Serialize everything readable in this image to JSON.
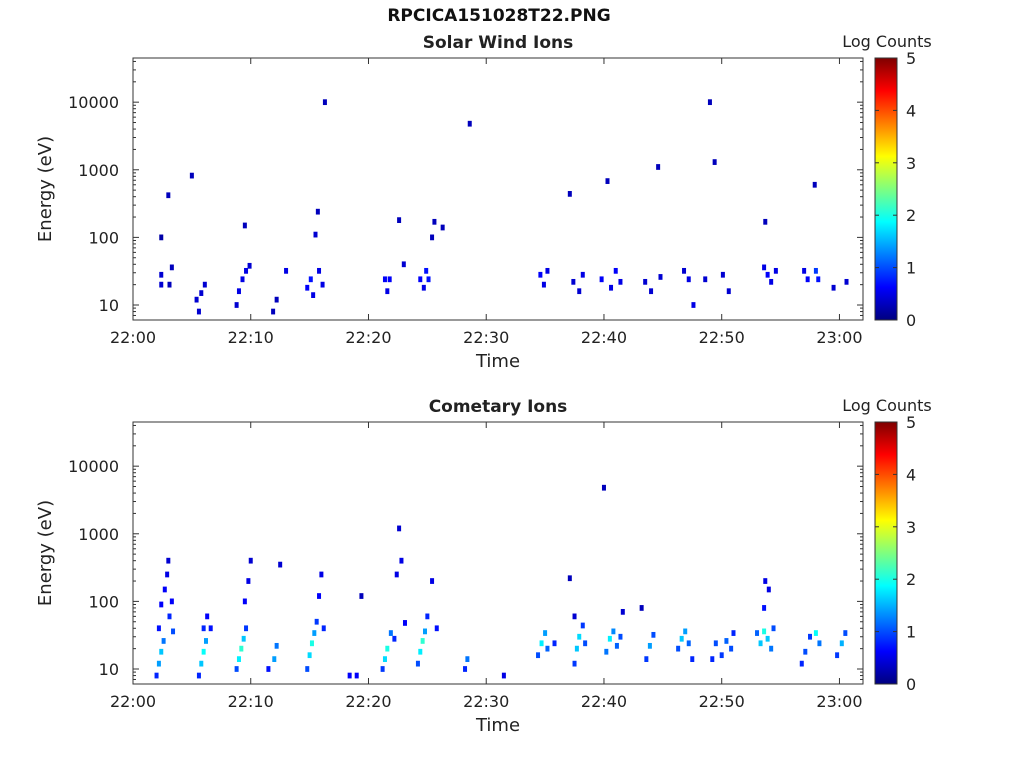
{
  "figure": {
    "title": "RPCICA151028T22.PNG"
  },
  "colors": {
    "colormap": [
      "#00007f",
      "#0000ff",
      "#007fff",
      "#00ffff",
      "#7fff7f",
      "#ffff00",
      "#ff7f00",
      "#ff0000",
      "#7f0000"
    ],
    "axis": "#333333"
  },
  "chart_data": [
    {
      "type": "heatmap",
      "title": "Solar Wind Ions",
      "xlabel": "Time",
      "ylabel": "Energy (eV)",
      "x_ticks": [
        "22:00",
        "22:10",
        "22:20",
        "22:30",
        "22:40",
        "22:50",
        "23:00"
      ],
      "x_range": [
        "22:00",
        "23:02"
      ],
      "y_scale": "log",
      "y_ticks": [
        10,
        100,
        1000,
        10000
      ],
      "y_range": [
        6,
        45000
      ],
      "colorbar": {
        "label": "Log Counts",
        "ticks": [
          0,
          1,
          2,
          3,
          4,
          5
        ],
        "range": [
          0,
          5
        ]
      },
      "cells": [
        [
          2.4,
          100,
          0.2
        ],
        [
          2.4,
          28,
          0.4
        ],
        [
          2.4,
          20,
          0.4
        ],
        [
          3.0,
          420,
          0.3
        ],
        [
          3.1,
          20,
          0.3
        ],
        [
          3.3,
          36,
          0.3
        ],
        [
          5.0,
          820,
          0.3
        ],
        [
          5.4,
          12,
          0.4
        ],
        [
          5.6,
          8,
          0.4
        ],
        [
          5.8,
          15,
          0.4
        ],
        [
          6.1,
          20,
          0.4
        ],
        [
          8.8,
          10,
          0.4
        ],
        [
          9.0,
          16,
          0.5
        ],
        [
          9.3,
          24,
          0.5
        ],
        [
          9.6,
          32,
          0.5
        ],
        [
          9.9,
          38,
          0.4
        ],
        [
          9.5,
          150,
          0.3
        ],
        [
          11.9,
          8,
          0.3
        ],
        [
          12.2,
          12,
          0.3
        ],
        [
          13.0,
          32,
          0.5
        ],
        [
          14.8,
          18,
          0.6
        ],
        [
          15.1,
          24,
          0.7
        ],
        [
          15.3,
          14,
          0.5
        ],
        [
          15.5,
          110,
          0.4
        ],
        [
          15.7,
          240,
          0.3
        ],
        [
          15.8,
          32,
          0.5
        ],
        [
          16.1,
          20,
          0.5
        ],
        [
          16.3,
          10000,
          0.3
        ],
        [
          21.4,
          24,
          0.6
        ],
        [
          21.6,
          16,
          0.5
        ],
        [
          21.8,
          24,
          0.6
        ],
        [
          22.6,
          180,
          0.3
        ],
        [
          23.0,
          40,
          0.4
        ],
        [
          24.4,
          24,
          0.6
        ],
        [
          24.7,
          18,
          0.5
        ],
        [
          24.9,
          32,
          0.7
        ],
        [
          25.1,
          24,
          0.7
        ],
        [
          25.4,
          100,
          0.3
        ],
        [
          25.6,
          170,
          0.3
        ],
        [
          26.3,
          140,
          0.3
        ],
        [
          28.6,
          4800,
          0.3
        ],
        [
          34.6,
          28,
          0.6
        ],
        [
          34.9,
          20,
          0.5
        ],
        [
          35.2,
          32,
          0.5
        ],
        [
          37.1,
          440,
          0.3
        ],
        [
          37.4,
          22,
          0.4
        ],
        [
          37.9,
          16,
          0.4
        ],
        [
          38.2,
          28,
          0.5
        ],
        [
          39.8,
          24,
          0.6
        ],
        [
          40.3,
          680,
          0.3
        ],
        [
          40.6,
          18,
          0.5
        ],
        [
          41.0,
          32,
          0.6
        ],
        [
          41.4,
          22,
          0.5
        ],
        [
          43.5,
          22,
          0.4
        ],
        [
          44.0,
          16,
          0.4
        ],
        [
          44.6,
          1100,
          0.3
        ],
        [
          44.8,
          26,
          0.4
        ],
        [
          46.8,
          32,
          0.4
        ],
        [
          47.2,
          24,
          0.5
        ],
        [
          47.6,
          10,
          0.5
        ],
        [
          48.6,
          24,
          0.4
        ],
        [
          49.0,
          10000,
          0.3
        ],
        [
          49.4,
          1300,
          0.3
        ],
        [
          50.1,
          28,
          0.4
        ],
        [
          50.6,
          16,
          0.4
        ],
        [
          53.6,
          36,
          0.5
        ],
        [
          53.9,
          28,
          0.6
        ],
        [
          54.2,
          22,
          0.5
        ],
        [
          54.6,
          32,
          0.5
        ],
        [
          53.7,
          170,
          0.3
        ],
        [
          57.0,
          32,
          0.5
        ],
        [
          57.3,
          24,
          0.6
        ],
        [
          57.9,
          600,
          0.3
        ],
        [
          58.0,
          32,
          0.9
        ],
        [
          58.2,
          24,
          0.7
        ],
        [
          59.5,
          18,
          0.4
        ],
        [
          60.6,
          22,
          0.4
        ]
      ]
    },
    {
      "type": "heatmap",
      "title": "Cometary Ions",
      "xlabel": "Time",
      "ylabel": "Energy (eV)",
      "x_ticks": [
        "22:00",
        "22:10",
        "22:20",
        "22:30",
        "22:40",
        "22:50",
        "23:00"
      ],
      "x_range": [
        "22:00",
        "23:02"
      ],
      "y_scale": "log",
      "y_ticks": [
        10,
        100,
        1000,
        10000
      ],
      "y_range": [
        6,
        45000
      ],
      "colorbar": {
        "label": "Log Counts",
        "ticks": [
          0,
          1,
          2,
          3,
          4,
          5
        ],
        "range": [
          0,
          5
        ]
      },
      "cells": [
        [
          2.0,
          8,
          0.8
        ],
        [
          2.2,
          12,
          1.4
        ],
        [
          2.4,
          18,
          1.6
        ],
        [
          2.6,
          26,
          1.2
        ],
        [
          2.2,
          40,
          0.7
        ],
        [
          2.4,
          90,
          0.6
        ],
        [
          2.7,
          150,
          0.6
        ],
        [
          2.9,
          250,
          0.5
        ],
        [
          3.0,
          400,
          0.4
        ],
        [
          3.1,
          60,
          0.8
        ],
        [
          3.3,
          100,
          0.6
        ],
        [
          3.4,
          36,
          1.0
        ],
        [
          5.6,
          8,
          0.8
        ],
        [
          5.8,
          12,
          1.6
        ],
        [
          6.0,
          18,
          1.9
        ],
        [
          6.2,
          26,
          1.4
        ],
        [
          6.0,
          40,
          0.8
        ],
        [
          6.3,
          60,
          0.6
        ],
        [
          6.6,
          40,
          0.7
        ],
        [
          8.8,
          10,
          1.0
        ],
        [
          9.0,
          14,
          1.8
        ],
        [
          9.2,
          20,
          2.1
        ],
        [
          9.4,
          28,
          1.6
        ],
        [
          9.6,
          40,
          0.9
        ],
        [
          9.5,
          100,
          0.6
        ],
        [
          9.8,
          200,
          0.5
        ],
        [
          10.0,
          400,
          0.4
        ],
        [
          11.5,
          10,
          0.7
        ],
        [
          12.0,
          14,
          1.4
        ],
        [
          12.2,
          22,
          1.2
        ],
        [
          12.5,
          350,
          0.4
        ],
        [
          14.8,
          10,
          1.0
        ],
        [
          15.0,
          16,
          1.7
        ],
        [
          15.2,
          24,
          2.0
        ],
        [
          15.4,
          34,
          1.4
        ],
        [
          15.6,
          50,
          0.9
        ],
        [
          15.8,
          120,
          0.6
        ],
        [
          16.0,
          250,
          0.5
        ],
        [
          16.2,
          40,
          0.8
        ],
        [
          18.4,
          8,
          0.6
        ],
        [
          19.0,
          8,
          0.6
        ],
        [
          19.4,
          120,
          0.3
        ],
        [
          21.2,
          10,
          0.9
        ],
        [
          21.4,
          14,
          1.7
        ],
        [
          21.6,
          20,
          2.0
        ],
        [
          21.9,
          34,
          1.2
        ],
        [
          22.2,
          28,
          0.8
        ],
        [
          22.4,
          250,
          0.5
        ],
        [
          22.6,
          1200,
          0.4
        ],
        [
          22.8,
          400,
          0.5
        ],
        [
          23.1,
          48,
          0.6
        ],
        [
          24.2,
          12,
          1.0
        ],
        [
          24.4,
          18,
          1.8
        ],
        [
          24.6,
          26,
          2.1
        ],
        [
          24.8,
          36,
          1.4
        ],
        [
          25.0,
          60,
          0.8
        ],
        [
          25.4,
          200,
          0.5
        ],
        [
          25.8,
          40,
          0.7
        ],
        [
          28.2,
          10,
          0.8
        ],
        [
          28.4,
          14,
          1.2
        ],
        [
          31.5,
          8,
          0.5
        ],
        [
          34.4,
          16,
          1.0
        ],
        [
          34.7,
          24,
          1.8
        ],
        [
          35.0,
          34,
          1.4
        ],
        [
          35.2,
          20,
          1.1
        ],
        [
          35.8,
          24,
          0.8
        ],
        [
          37.1,
          220,
          0.3
        ],
        [
          37.5,
          60,
          0.4
        ],
        [
          37.5,
          12,
          0.9
        ],
        [
          37.7,
          20,
          1.6
        ],
        [
          37.9,
          30,
          1.7
        ],
        [
          38.2,
          44,
          0.9
        ],
        [
          38.4,
          24,
          1.0
        ],
        [
          40.2,
          18,
          1.2
        ],
        [
          40.5,
          28,
          1.8
        ],
        [
          40.8,
          36,
          1.3
        ],
        [
          41.1,
          22,
          1.1
        ],
        [
          41.4,
          30,
          1.0
        ],
        [
          40.0,
          4800,
          0.3
        ],
        [
          41.6,
          70,
          0.4
        ],
        [
          43.2,
          80,
          0.3
        ],
        [
          43.6,
          14,
          0.9
        ],
        [
          43.9,
          22,
          1.4
        ],
        [
          44.2,
          32,
          1.0
        ],
        [
          46.3,
          20,
          1.0
        ],
        [
          46.6,
          28,
          1.6
        ],
        [
          46.9,
          36,
          1.4
        ],
        [
          47.2,
          24,
          1.1
        ],
        [
          47.5,
          14,
          0.8
        ],
        [
          49.2,
          14,
          0.8
        ],
        [
          49.5,
          24,
          1.0
        ],
        [
          50.0,
          16,
          0.9
        ],
        [
          50.4,
          26,
          1.1
        ],
        [
          50.8,
          20,
          1.0
        ],
        [
          51.0,
          34,
          0.8
        ],
        [
          53.0,
          34,
          1.1
        ],
        [
          53.3,
          24,
          1.6
        ],
        [
          53.6,
          36,
          2.0
        ],
        [
          53.9,
          28,
          1.6
        ],
        [
          54.2,
          20,
          1.2
        ],
        [
          54.4,
          40,
          1.0
        ],
        [
          53.6,
          80,
          0.7
        ],
        [
          53.7,
          200,
          0.5
        ],
        [
          54.0,
          150,
          0.5
        ],
        [
          56.8,
          12,
          0.8
        ],
        [
          57.1,
          18,
          1.0
        ],
        [
          57.5,
          30,
          0.9
        ],
        [
          58.0,
          34,
          1.9
        ],
        [
          58.3,
          24,
          1.2
        ],
        [
          59.8,
          16,
          0.9
        ],
        [
          60.2,
          24,
          1.5
        ],
        [
          60.5,
          34,
          1.0
        ]
      ]
    }
  ]
}
